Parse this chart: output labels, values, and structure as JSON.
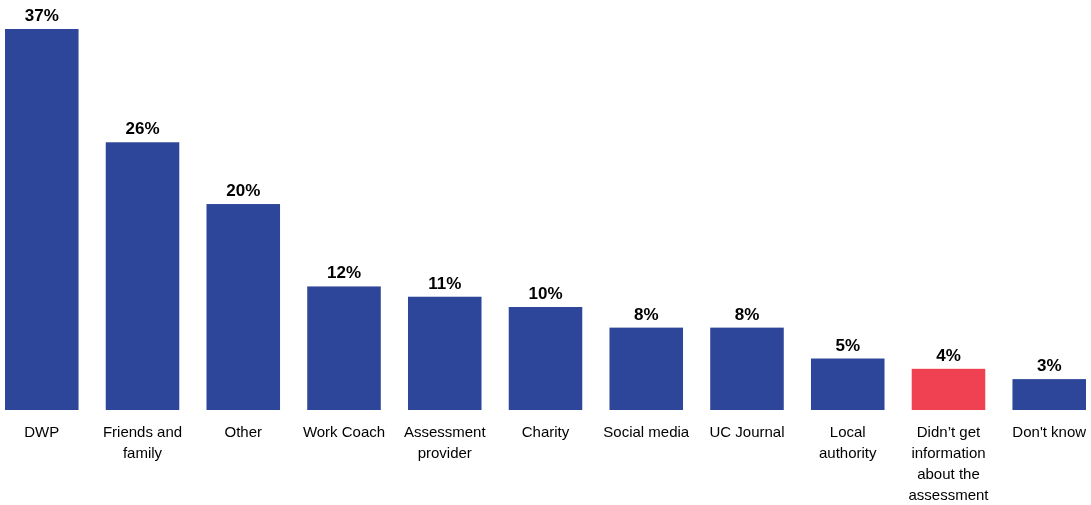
{
  "chart_data": {
    "type": "bar",
    "categories": [
      "DWP",
      "Friends and family",
      "Other",
      "Work Coach",
      "Assessment provider",
      "Charity",
      "Social media",
      "UC Journal",
      "Local authority",
      "Didn’t get information about the assessment",
      "Don't know"
    ],
    "values": [
      37,
      26,
      20,
      12,
      11,
      10,
      8,
      8,
      5,
      4,
      3
    ],
    "colors": [
      "#2e4699",
      "#2e4699",
      "#2e4699",
      "#2e4699",
      "#2e4699",
      "#2e4699",
      "#2e4699",
      "#2e4699",
      "#2e4699",
      "#ef4151",
      "#2e4699"
    ],
    "value_labels": [
      "37%",
      "26%",
      "20%",
      "12%",
      "11%",
      "10%",
      "8%",
      "8%",
      "5%",
      "4%",
      "3%"
    ]
  }
}
